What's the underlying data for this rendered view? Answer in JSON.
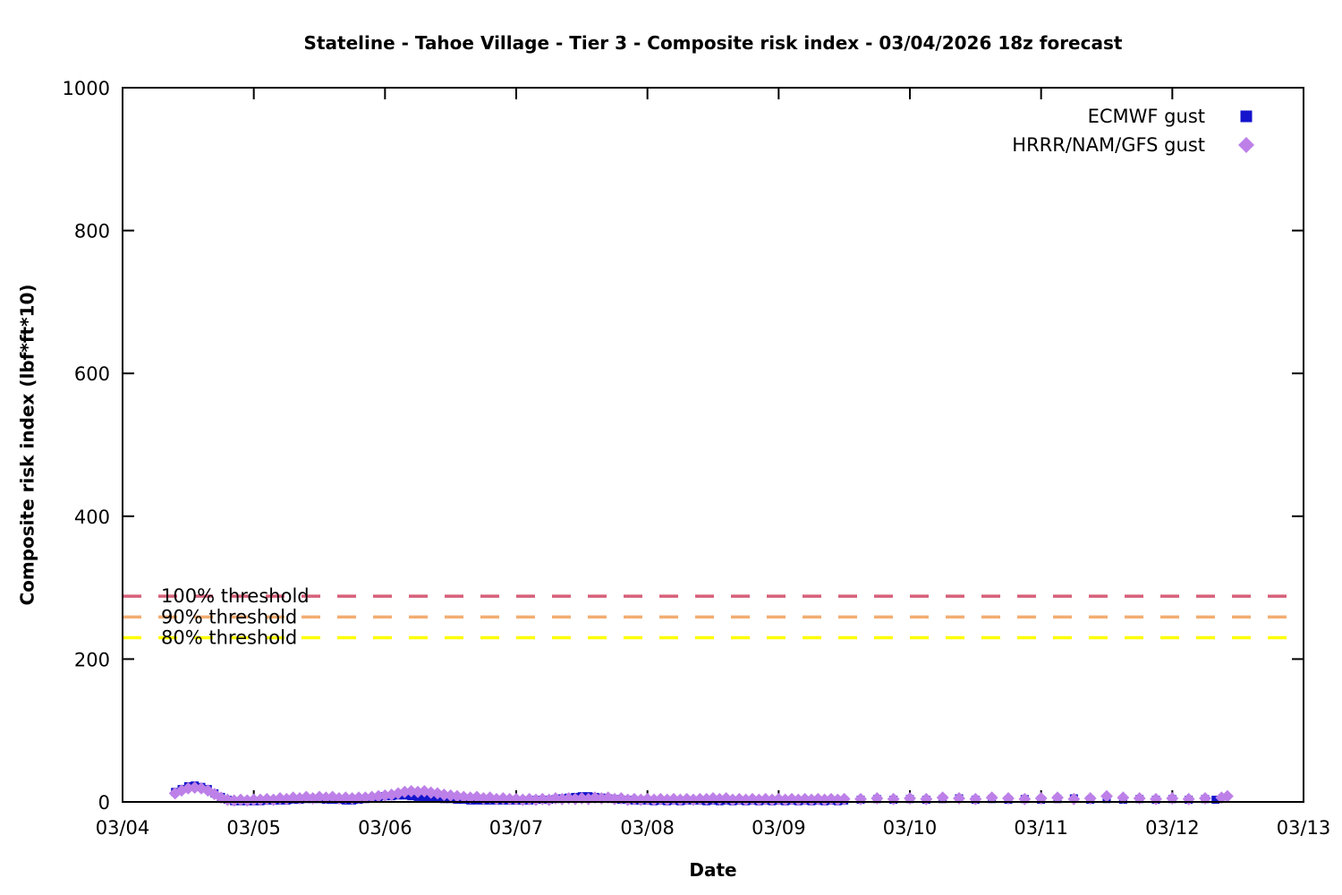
{
  "chart_data": {
    "type": "scatter",
    "title": "Stateline - Tahoe Village - Tier 3 - Composite risk index - 03/04/2026 18z forecast",
    "xlabel": "Date",
    "ylabel": "Composite risk index (lbf*ft*10)",
    "grid": false,
    "legend_position": "top-right",
    "x_axis": {
      "range": [
        4,
        13
      ],
      "tick_values": [
        4,
        5,
        6,
        7,
        8,
        9,
        10,
        11,
        12,
        13
      ],
      "tick_labels": [
        "03/04",
        "03/05",
        "03/06",
        "03/07",
        "03/08",
        "03/09",
        "03/10",
        "03/11",
        "03/12",
        "03/13"
      ]
    },
    "y_axis": {
      "range": [
        0,
        1000
      ],
      "tick_values": [
        0,
        200,
        400,
        600,
        800,
        1000
      ],
      "tick_labels": [
        "0",
        "200",
        "400",
        "600",
        "800",
        "1000"
      ]
    },
    "thresholds": [
      {
        "label": "100% threshold",
        "value": 288,
        "color": "#d6607a"
      },
      {
        "label": "90% threshold",
        "value": 259,
        "color": "#f2ad72"
      },
      {
        "label": "80% threshold",
        "value": 230,
        "color": "#ffff00"
      }
    ],
    "series": [
      {
        "name": "ECMWF gust",
        "marker": "square",
        "color": "#1414cc",
        "points": [
          [
            4.4,
            14
          ],
          [
            4.45,
            18
          ],
          [
            4.5,
            22
          ],
          [
            4.55,
            23
          ],
          [
            4.6,
            21
          ],
          [
            4.65,
            18
          ],
          [
            4.7,
            12
          ],
          [
            4.75,
            7
          ],
          [
            4.8,
            3
          ],
          [
            4.85,
            1
          ],
          [
            4.9,
            1
          ],
          [
            4.95,
            1
          ],
          [
            5,
            1
          ],
          [
            5.05,
            1
          ],
          [
            5.1,
            2
          ],
          [
            5.15,
            2
          ],
          [
            5.2,
            2
          ],
          [
            5.25,
            2
          ],
          [
            5.3,
            3
          ],
          [
            5.35,
            3
          ],
          [
            5.4,
            4
          ],
          [
            5.45,
            4
          ],
          [
            5.5,
            4
          ],
          [
            5.55,
            3
          ],
          [
            5.6,
            3
          ],
          [
            5.65,
            3
          ],
          [
            5.7,
            2
          ],
          [
            5.75,
            2
          ],
          [
            5.8,
            3
          ],
          [
            5.85,
            4
          ],
          [
            5.9,
            5
          ],
          [
            5.95,
            6
          ],
          [
            6,
            8
          ],
          [
            6.05,
            8
          ],
          [
            6.1,
            9
          ],
          [
            6.15,
            9
          ],
          [
            6.2,
            8
          ],
          [
            6.25,
            7
          ],
          [
            6.3,
            6
          ],
          [
            6.35,
            5
          ],
          [
            6.4,
            5
          ],
          [
            6.45,
            4
          ],
          [
            6.5,
            4
          ],
          [
            6.55,
            3
          ],
          [
            6.6,
            3
          ],
          [
            6.65,
            2
          ],
          [
            6.7,
            2
          ],
          [
            6.75,
            2
          ],
          [
            6.8,
            2
          ],
          [
            6.85,
            2
          ],
          [
            6.9,
            2
          ],
          [
            6.95,
            2
          ],
          [
            7,
            2
          ],
          [
            7.05,
            2
          ],
          [
            7.1,
            2
          ],
          [
            7.15,
            3
          ],
          [
            7.2,
            3
          ],
          [
            7.25,
            3
          ],
          [
            7.3,
            4
          ],
          [
            7.35,
            5
          ],
          [
            7.4,
            6
          ],
          [
            7.45,
            7
          ],
          [
            7.5,
            8
          ],
          [
            7.55,
            8
          ],
          [
            7.6,
            7
          ],
          [
            7.65,
            6
          ],
          [
            7.7,
            5
          ],
          [
            7.75,
            4
          ],
          [
            7.8,
            3
          ],
          [
            7.85,
            3
          ],
          [
            7.9,
            2
          ],
          [
            7.95,
            2
          ],
          [
            8,
            2
          ],
          [
            8.05,
            1
          ],
          [
            8.1,
            2
          ],
          [
            8.15,
            1
          ],
          [
            8.2,
            2
          ],
          [
            8.25,
            1
          ],
          [
            8.3,
            2
          ],
          [
            8.35,
            2
          ],
          [
            8.4,
            2
          ],
          [
            8.45,
            1
          ],
          [
            8.5,
            2
          ],
          [
            8.55,
            1
          ],
          [
            8.6,
            2
          ],
          [
            8.65,
            1
          ],
          [
            8.7,
            2
          ],
          [
            8.75,
            1
          ],
          [
            8.8,
            2
          ],
          [
            8.85,
            1
          ],
          [
            8.9,
            2
          ],
          [
            8.95,
            1
          ],
          [
            9,
            2
          ],
          [
            9.05,
            1
          ],
          [
            9.1,
            2
          ],
          [
            9.15,
            1
          ],
          [
            9.2,
            2
          ],
          [
            9.25,
            1
          ],
          [
            9.3,
            2
          ],
          [
            9.35,
            1
          ],
          [
            9.4,
            2
          ],
          [
            9.45,
            1
          ],
          [
            9.5,
            2
          ],
          [
            9.625,
            3
          ],
          [
            9.75,
            4
          ],
          [
            9.875,
            3
          ],
          [
            10,
            4
          ],
          [
            10.125,
            3
          ],
          [
            10.25,
            4
          ],
          [
            10.375,
            5
          ],
          [
            10.5,
            3
          ],
          [
            10.625,
            4
          ],
          [
            10.75,
            3
          ],
          [
            10.875,
            4
          ],
          [
            11,
            3
          ],
          [
            11.125,
            4
          ],
          [
            11.25,
            5
          ],
          [
            11.375,
            3
          ],
          [
            11.5,
            4
          ],
          [
            11.625,
            3
          ],
          [
            11.75,
            4
          ],
          [
            11.875,
            3
          ],
          [
            12,
            4
          ],
          [
            12.125,
            3
          ],
          [
            12.25,
            4
          ],
          [
            12.33,
            3
          ]
        ]
      },
      {
        "name": "HRRR/NAM/GFS gust",
        "marker": "diamond",
        "color": "#bd80e8",
        "points": [
          [
            4.4,
            12
          ],
          [
            4.45,
            16
          ],
          [
            4.5,
            19
          ],
          [
            4.55,
            20
          ],
          [
            4.6,
            19
          ],
          [
            4.65,
            16
          ],
          [
            4.7,
            11
          ],
          [
            4.75,
            6
          ],
          [
            4.8,
            3
          ],
          [
            4.85,
            2
          ],
          [
            4.9,
            3
          ],
          [
            4.95,
            2
          ],
          [
            5,
            3
          ],
          [
            5.05,
            3
          ],
          [
            5.1,
            4
          ],
          [
            5.15,
            3
          ],
          [
            5.2,
            5
          ],
          [
            5.25,
            4
          ],
          [
            5.3,
            6
          ],
          [
            5.35,
            5
          ],
          [
            5.4,
            7
          ],
          [
            5.45,
            5
          ],
          [
            5.5,
            7
          ],
          [
            5.55,
            6
          ],
          [
            5.6,
            7
          ],
          [
            5.65,
            5
          ],
          [
            5.7,
            6
          ],
          [
            5.75,
            5
          ],
          [
            5.8,
            6
          ],
          [
            5.85,
            6
          ],
          [
            5.9,
            7
          ],
          [
            5.95,
            8
          ],
          [
            6,
            9
          ],
          [
            6.05,
            10
          ],
          [
            6.1,
            12
          ],
          [
            6.15,
            14
          ],
          [
            6.2,
            15
          ],
          [
            6.25,
            14
          ],
          [
            6.3,
            15
          ],
          [
            6.35,
            13
          ],
          [
            6.4,
            12
          ],
          [
            6.45,
            10
          ],
          [
            6.5,
            9
          ],
          [
            6.55,
            8
          ],
          [
            6.6,
            7
          ],
          [
            6.65,
            6
          ],
          [
            6.7,
            7
          ],
          [
            6.75,
            5
          ],
          [
            6.8,
            6
          ],
          [
            6.85,
            4
          ],
          [
            6.9,
            5
          ],
          [
            6.95,
            4
          ],
          [
            7,
            4
          ],
          [
            7.05,
            3
          ],
          [
            7.1,
            4
          ],
          [
            7.15,
            3
          ],
          [
            7.2,
            4
          ],
          [
            7.25,
            3
          ],
          [
            7.3,
            5
          ],
          [
            7.35,
            4
          ],
          [
            7.4,
            5
          ],
          [
            7.45,
            4
          ],
          [
            7.5,
            5
          ],
          [
            7.55,
            4
          ],
          [
            7.6,
            6
          ],
          [
            7.65,
            5
          ],
          [
            7.7,
            6
          ],
          [
            7.75,
            4
          ],
          [
            7.8,
            5
          ],
          [
            7.85,
            3
          ],
          [
            7.9,
            4
          ],
          [
            7.95,
            3
          ],
          [
            8,
            4
          ],
          [
            8.05,
            3
          ],
          [
            8.1,
            4
          ],
          [
            8.15,
            3
          ],
          [
            8.2,
            4
          ],
          [
            8.25,
            3
          ],
          [
            8.3,
            4
          ],
          [
            8.35,
            3
          ],
          [
            8.4,
            4
          ],
          [
            8.45,
            4
          ],
          [
            8.5,
            5
          ],
          [
            8.55,
            4
          ],
          [
            8.6,
            5
          ],
          [
            8.65,
            3
          ],
          [
            8.7,
            4
          ],
          [
            8.75,
            3
          ],
          [
            8.8,
            4
          ],
          [
            8.85,
            3
          ],
          [
            8.9,
            4
          ],
          [
            8.95,
            3
          ],
          [
            9,
            4
          ],
          [
            9.05,
            3
          ],
          [
            9.1,
            4
          ],
          [
            9.15,
            3
          ],
          [
            9.2,
            4
          ],
          [
            9.25,
            3
          ],
          [
            9.3,
            4
          ],
          [
            9.35,
            3
          ],
          [
            9.4,
            4
          ],
          [
            9.45,
            3
          ],
          [
            9.5,
            4
          ],
          [
            9.625,
            4
          ],
          [
            9.75,
            5
          ],
          [
            9.875,
            4
          ],
          [
            10,
            5
          ],
          [
            10.125,
            4
          ],
          [
            10.25,
            6
          ],
          [
            10.375,
            5
          ],
          [
            10.5,
            4
          ],
          [
            10.625,
            6
          ],
          [
            10.75,
            5
          ],
          [
            10.875,
            4
          ],
          [
            11,
            5
          ],
          [
            11.125,
            6
          ],
          [
            11.25,
            4
          ],
          [
            11.375,
            5
          ],
          [
            11.5,
            8
          ],
          [
            11.625,
            6
          ],
          [
            11.75,
            5
          ],
          [
            11.875,
            4
          ],
          [
            12,
            5
          ],
          [
            12.125,
            4
          ],
          [
            12.25,
            5
          ],
          [
            12.375,
            6
          ],
          [
            12.42,
            8
          ]
        ]
      }
    ]
  }
}
